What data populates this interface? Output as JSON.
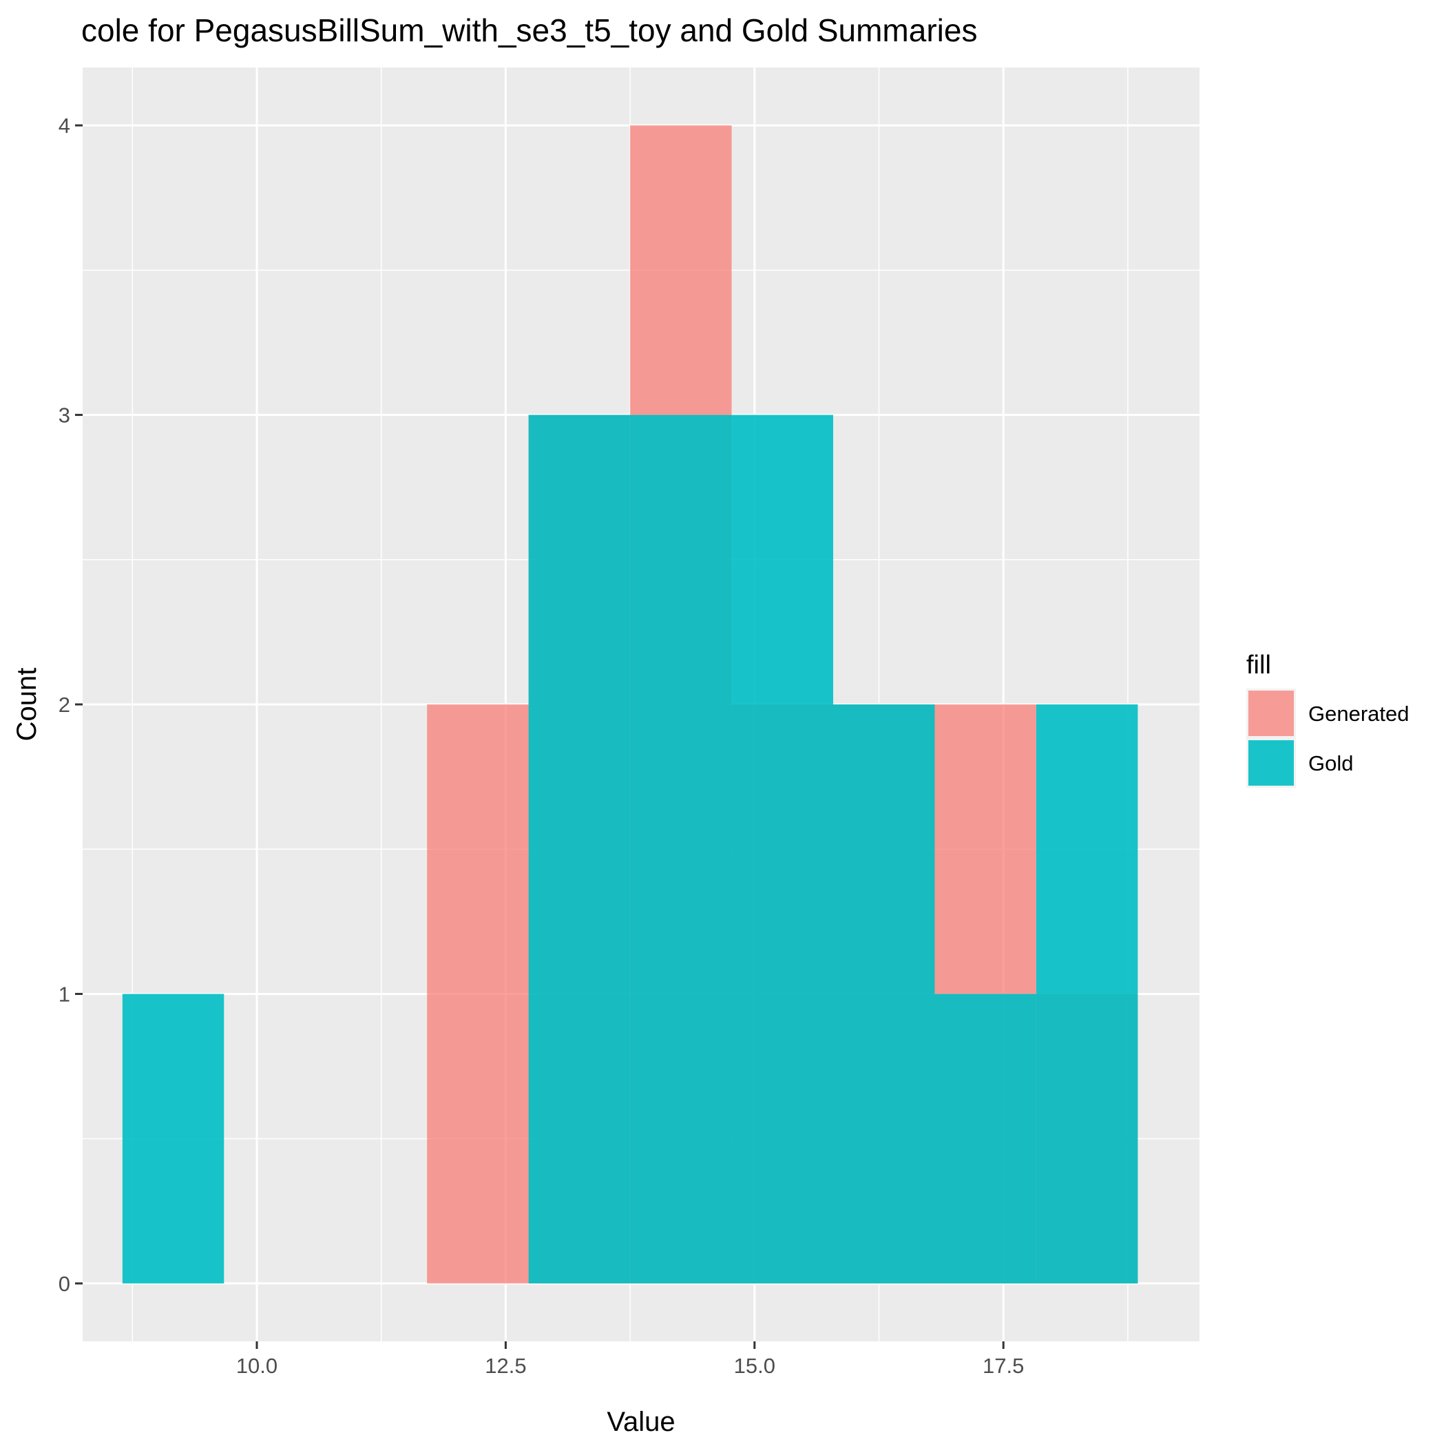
{
  "chart_data": {
    "type": "histogram",
    "title": "cole for PegasusBillSum_with_se3_t5_toy and Gold Summaries",
    "xlabel": "Value",
    "ylabel": "Count",
    "xlim": [
      8.25,
      19.47
    ],
    "ylim": [
      -0.2,
      4.2
    ],
    "xticks": [
      10.0,
      12.5,
      15.0,
      17.5
    ],
    "xtick_labels": [
      "10.0",
      "12.5",
      "15.0",
      "17.5"
    ],
    "yticks": [
      0,
      1,
      2,
      3,
      4
    ],
    "ytick_labels": [
      "0",
      "1",
      "2",
      "3",
      "4"
    ],
    "grid": true,
    "bin_edges": [
      8.65,
      9.67,
      10.69,
      11.71,
      12.73,
      13.75,
      14.77,
      15.79,
      16.81,
      17.83,
      18.85
    ],
    "series": [
      {
        "name": "Generated",
        "color": "#F8766D",
        "opacity": 0.7,
        "counts": [
          0,
          0,
          0,
          2,
          3,
          4,
          2,
          2,
          2,
          1
        ]
      },
      {
        "name": "Gold",
        "color": "#00BFC4",
        "opacity": 0.9,
        "counts": [
          1,
          0,
          0,
          0,
          3,
          3,
          3,
          2,
          1,
          2
        ]
      }
    ],
    "legend": {
      "title": "fill",
      "position": "right"
    }
  }
}
